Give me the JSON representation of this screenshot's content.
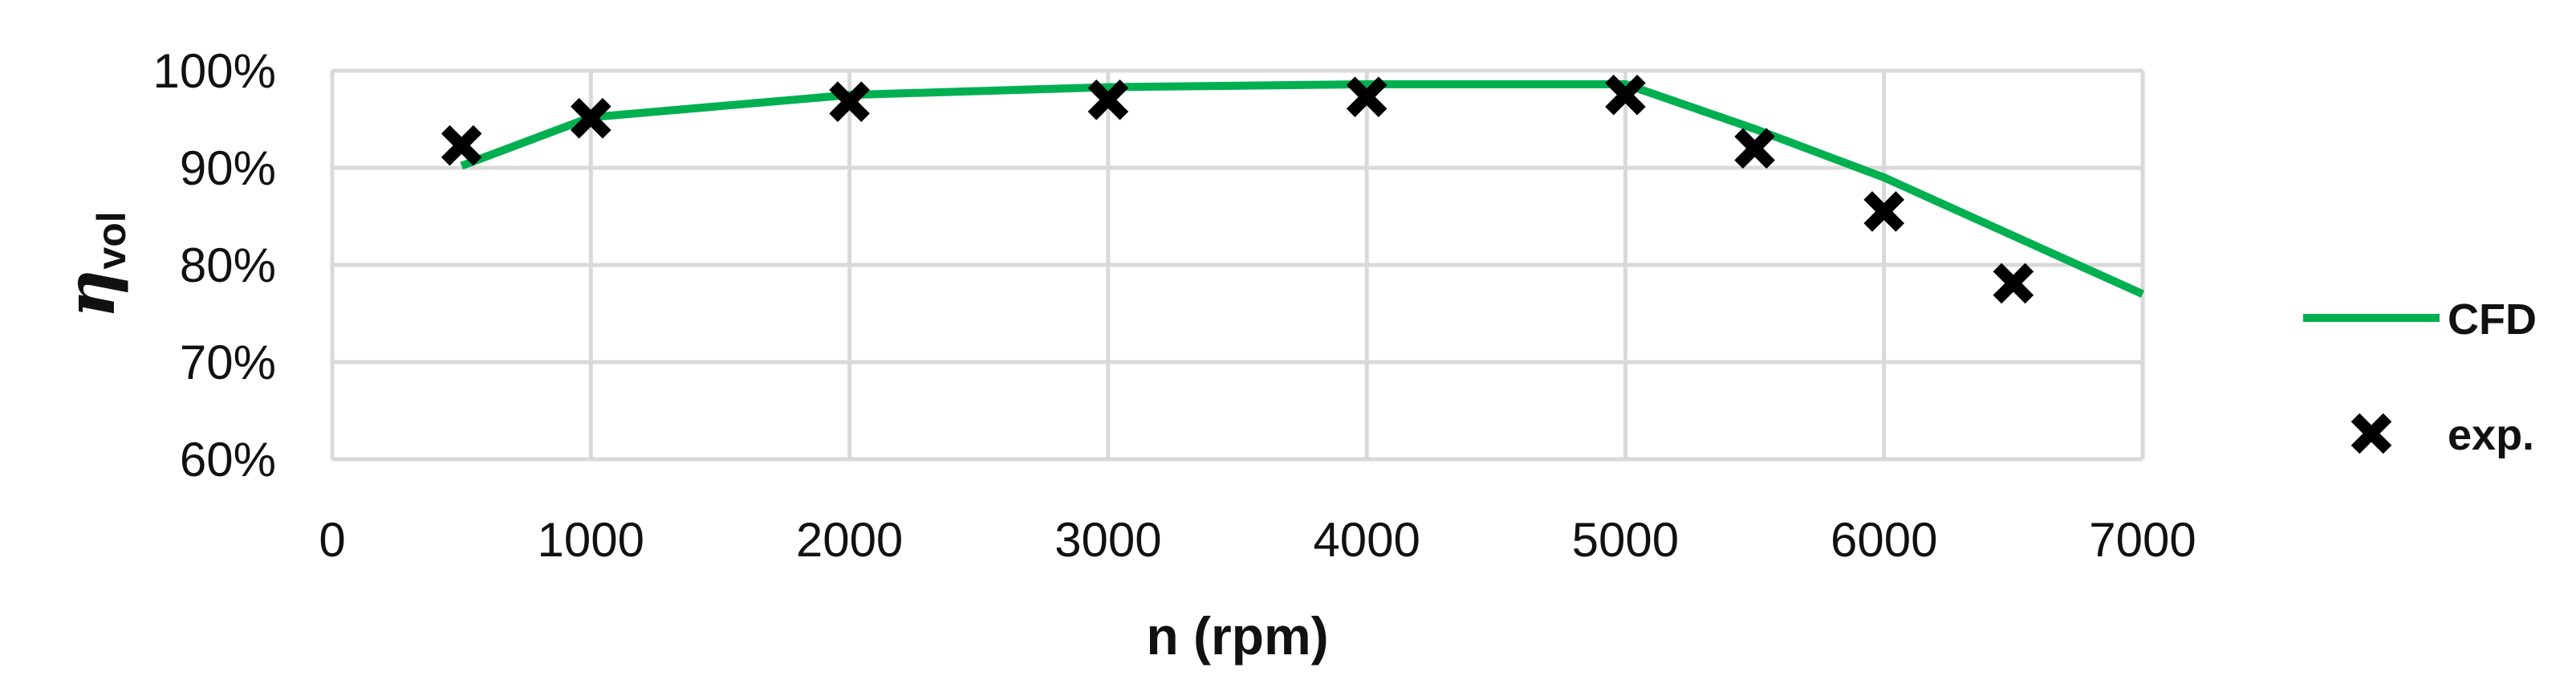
{
  "chart_data": {
    "type": "line",
    "xlabel": "n (rpm)",
    "ylabel": {
      "main": "η",
      "sub": "vol"
    },
    "xlim": [
      0,
      7000
    ],
    "ylim": [
      0.6,
      1.0
    ],
    "x_ticks": [
      0,
      1000,
      2000,
      3000,
      4000,
      5000,
      6000,
      7000
    ],
    "x_tick_labels": [
      "0",
      "1000",
      "2000",
      "3000",
      "4000",
      "5000",
      "6000",
      "7000"
    ],
    "y_ticks": [
      0.6,
      0.7,
      0.8,
      0.9,
      1.0
    ],
    "y_tick_labels": [
      "60%",
      "70%",
      "80%",
      "90%",
      "100%"
    ],
    "grid": true,
    "legend_position": "right",
    "series": [
      {
        "name": "CFD",
        "style": "line",
        "color": "#00b050",
        "x": [
          500,
          1000,
          2000,
          3000,
          4000,
          5000,
          5500,
          6000,
          7000
        ],
        "y": [
          0.902,
          0.952,
          0.975,
          0.983,
          0.986,
          0.986,
          0.94,
          0.89,
          0.77
        ]
      },
      {
        "name": "exp.",
        "style": "marker",
        "marker": "x",
        "color": "#000000",
        "x": [
          500,
          1000,
          2000,
          3000,
          4000,
          5000,
          5500,
          6000,
          6500
        ],
        "y": [
          0.923,
          0.951,
          0.968,
          0.97,
          0.973,
          0.975,
          0.92,
          0.855,
          0.781
        ]
      }
    ]
  }
}
